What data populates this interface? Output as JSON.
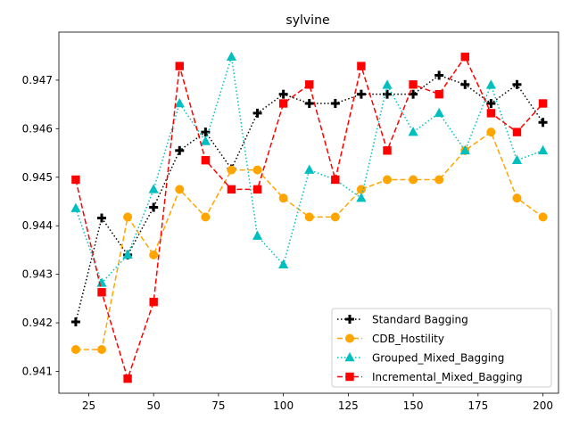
{
  "chart_data": {
    "type": "line",
    "title": "sylvine",
    "xlabel": "",
    "ylabel": "",
    "xlim": [
      13.5,
      206
    ],
    "ylim": [
      0.94055,
      0.94799
    ],
    "xticks": [
      25,
      50,
      75,
      100,
      125,
      150,
      175,
      200
    ],
    "yticks": [
      0.941,
      0.942,
      0.943,
      0.944,
      0.945,
      0.946,
      0.947
    ],
    "ytick_labels": [
      "0.941",
      "0.942",
      "0.943",
      "0.944",
      "0.945",
      "0.946",
      "0.947"
    ],
    "grid": false,
    "legend_position": "lower-right",
    "x": [
      20,
      30,
      40,
      50,
      60,
      70,
      80,
      90,
      100,
      110,
      120,
      130,
      140,
      150,
      160,
      170,
      180,
      190,
      200
    ],
    "series": [
      {
        "name": "Standard Bagging",
        "color": "#000000",
        "linestyle": "dotted",
        "marker": "plus",
        "values": [
          0.94202,
          0.94416,
          0.9434,
          0.94438,
          0.94555,
          0.94593,
          0.94517,
          0.94632,
          0.94671,
          0.94652,
          0.94652,
          0.94671,
          0.94671,
          0.94671,
          0.9471,
          0.94691,
          0.94652,
          0.94691,
          0.94613
        ]
      },
      {
        "name": "CDB_Hostility",
        "color": "#ffa500",
        "linestyle": "dashed",
        "marker": "circle",
        "values": [
          0.94145,
          0.94145,
          0.94418,
          0.9434,
          0.94475,
          0.94418,
          0.94515,
          0.94515,
          0.94457,
          0.94418,
          0.94418,
          0.94475,
          0.94495,
          0.94495,
          0.94495,
          0.94555,
          0.94593,
          0.94457,
          0.94418
        ]
      },
      {
        "name": "Grouped_Mixed_Bagging",
        "color": "#00bfbf",
        "linestyle": "dotted",
        "marker": "triangle",
        "values": [
          0.94436,
          0.94282,
          0.9434,
          0.94475,
          0.94652,
          0.94574,
          0.94748,
          0.94379,
          0.9432,
          0.94515,
          0.94495,
          0.94457,
          0.9469,
          0.94593,
          0.94632,
          0.94555,
          0.9469,
          0.94535,
          0.94555
        ]
      },
      {
        "name": "Incremental_Mixed_Bagging",
        "color": "#ff0000",
        "linestyle": "dashed",
        "marker": "square",
        "values": [
          0.94495,
          0.94263,
          0.94085,
          0.94243,
          0.94729,
          0.94535,
          0.94475,
          0.94475,
          0.94652,
          0.94691,
          0.94495,
          0.94729,
          0.94555,
          0.94691,
          0.94671,
          0.94748,
          0.94632,
          0.94593,
          0.94652
        ]
      }
    ]
  }
}
